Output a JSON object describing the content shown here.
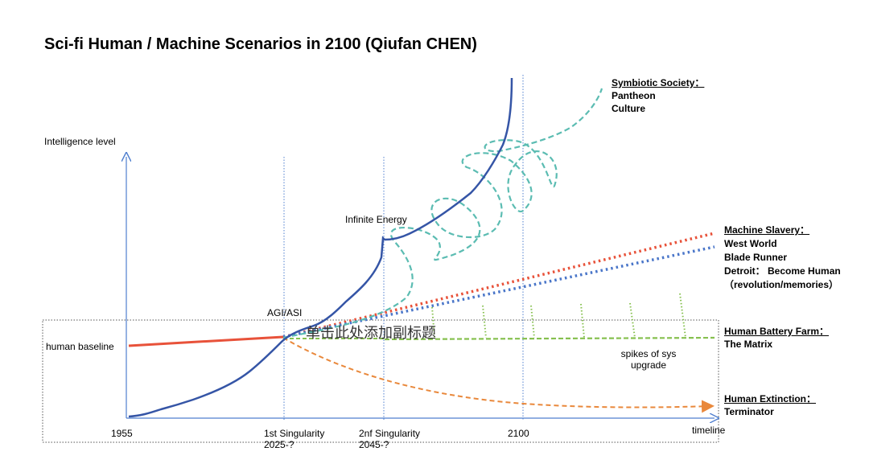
{
  "title": "Sci-fi Human / Machine Scenarios in 2100 (Qiufan CHEN)",
  "subtitle_placeholder": "单击此处添加副标题",
  "axis": {
    "y_label": "Intelligence level",
    "x_label": "timeline",
    "ticks": {
      "t1955": "1955",
      "sing1_line1": "1st Singularity",
      "sing1_line2": "2025-?",
      "sing2_line1": "2nf Singularity",
      "sing2_line2": "2045-?",
      "t2100": "2100"
    }
  },
  "labels": {
    "human_baseline": "human baseline",
    "agi": "AGI/ASI",
    "infinite_energy": "Infinite Energy",
    "spikes_line1": "spikes of sys",
    "spikes_line2": "upgrade"
  },
  "scenarios": {
    "symbiotic": {
      "heading": "Symbiotic Society：",
      "items": [
        "Pantheon",
        "Culture"
      ]
    },
    "slavery": {
      "heading": "Machine Slavery：",
      "items": [
        "West World",
        "Blade Runner",
        "Detroit： Become Human",
        "（revolution/memories）"
      ]
    },
    "battery": {
      "heading": "Human Battery Farm：",
      "items": [
        "The Matrix"
      ]
    },
    "extinction": {
      "heading": "Human Extinction：",
      "items": [
        "Terminator"
      ]
    }
  },
  "colors": {
    "axis": "#4f7fcf",
    "ai_curve": "#3555a6",
    "human": "#e8523a",
    "symbiotic": "#5bbcb2",
    "slavery_red": "#e8523a",
    "slavery_blue": "#4a76c9",
    "battery": "#86c04f",
    "extinction": "#e9883b"
  }
}
